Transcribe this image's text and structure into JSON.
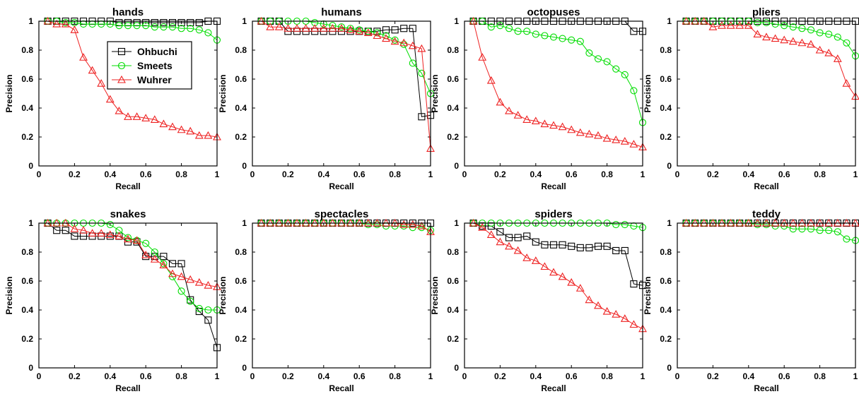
{
  "chart_data": [
    {
      "type": "line",
      "title": "hands",
      "xlabel": "Recall",
      "ylabel": "Precision",
      "xlim": [
        0,
        1
      ],
      "ylim": [
        0,
        1
      ],
      "xticks": [
        "0",
        "0.2",
        "0.4",
        "0.6",
        "0.8",
        "1"
      ],
      "yticks": [
        "0",
        "0.2",
        "0.4",
        "0.6",
        "0.8",
        "1"
      ],
      "legend_shown": true,
      "x": [
        0.05,
        0.1,
        0.15,
        0.2,
        0.25,
        0.3,
        0.35,
        0.4,
        0.45,
        0.5,
        0.55,
        0.6,
        0.65,
        0.7,
        0.75,
        0.8,
        0.85,
        0.9,
        0.95,
        1.0
      ],
      "series": [
        {
          "name": "Ohbuchi",
          "values": [
            1,
            1,
            1,
            1,
            1,
            1,
            1,
            1,
            0.99,
            0.99,
            0.99,
            0.99,
            0.99,
            0.99,
            0.99,
            0.99,
            0.99,
            0.99,
            1,
            1
          ]
        },
        {
          "name": "Smeets",
          "values": [
            1,
            1,
            0.99,
            0.99,
            0.98,
            0.98,
            0.98,
            0.98,
            0.97,
            0.97,
            0.97,
            0.97,
            0.96,
            0.96,
            0.96,
            0.95,
            0.95,
            0.94,
            0.92,
            0.87
          ]
        },
        {
          "name": "Wuhrer",
          "values": [
            1,
            0.98,
            0.98,
            0.94,
            0.75,
            0.66,
            0.57,
            0.46,
            0.38,
            0.34,
            0.34,
            0.33,
            0.32,
            0.29,
            0.27,
            0.25,
            0.24,
            0.21,
            0.21,
            0.2
          ]
        }
      ]
    },
    {
      "type": "line",
      "title": "humans",
      "xlabel": "Recall",
      "ylabel": "Precision",
      "xlim": [
        0,
        1
      ],
      "ylim": [
        0,
        1
      ],
      "xticks": [
        "0",
        "0.2",
        "0.4",
        "0.6",
        "0.8",
        "1"
      ],
      "yticks": [
        "0",
        "0.2",
        "0.4",
        "0.6",
        "0.8",
        "1"
      ],
      "x": [
        0.05,
        0.1,
        0.15,
        0.2,
        0.25,
        0.3,
        0.35,
        0.4,
        0.45,
        0.5,
        0.55,
        0.6,
        0.65,
        0.7,
        0.75,
        0.8,
        0.85,
        0.9,
        0.95,
        1.0
      ],
      "series": [
        {
          "name": "Ohbuchi",
          "values": [
            1,
            1,
            1,
            0.93,
            0.93,
            0.93,
            0.93,
            0.93,
            0.93,
            0.93,
            0.93,
            0.93,
            0.93,
            0.93,
            0.94,
            0.94,
            0.95,
            0.95,
            0.34,
            0.35
          ]
        },
        {
          "name": "Smeets",
          "values": [
            1,
            1,
            1,
            1,
            1,
            1,
            0.99,
            0.98,
            0.97,
            0.96,
            0.95,
            0.94,
            0.93,
            0.92,
            0.9,
            0.87,
            0.84,
            0.71,
            0.64,
            0.5
          ]
        },
        {
          "name": "Wuhrer",
          "values": [
            1,
            0.96,
            0.96,
            0.95,
            0.95,
            0.95,
            0.95,
            0.95,
            0.95,
            0.95,
            0.94,
            0.93,
            0.92,
            0.9,
            0.88,
            0.86,
            0.85,
            0.83,
            0.81,
            0.12
          ]
        }
      ]
    },
    {
      "type": "line",
      "title": "octopuses",
      "xlabel": "Recall",
      "ylabel": "Precision",
      "xlim": [
        0,
        1
      ],
      "ylim": [
        0,
        1
      ],
      "xticks": [
        "0",
        "0.2",
        "0.4",
        "0.6",
        "0.8",
        "1"
      ],
      "yticks": [
        "0",
        "0.2",
        "0.4",
        "0.6",
        "0.8",
        "1"
      ],
      "x": [
        0.05,
        0.1,
        0.15,
        0.2,
        0.25,
        0.3,
        0.35,
        0.4,
        0.45,
        0.5,
        0.55,
        0.6,
        0.65,
        0.7,
        0.75,
        0.8,
        0.85,
        0.9,
        0.95,
        1.0
      ],
      "series": [
        {
          "name": "Ohbuchi",
          "values": [
            1,
            1,
            1,
            1,
            1,
            1,
            1,
            1,
            1,
            1,
            1,
            1,
            1,
            1,
            1,
            1,
            1,
            1,
            0.93,
            0.93
          ]
        },
        {
          "name": "Smeets",
          "values": [
            1,
            1,
            0.96,
            0.97,
            0.95,
            0.93,
            0.93,
            0.91,
            0.9,
            0.89,
            0.88,
            0.87,
            0.86,
            0.78,
            0.74,
            0.72,
            0.67,
            0.63,
            0.52,
            0.3
          ]
        },
        {
          "name": "Wuhrer",
          "values": [
            1,
            0.75,
            0.59,
            0.44,
            0.38,
            0.35,
            0.32,
            0.31,
            0.29,
            0.28,
            0.27,
            0.25,
            0.23,
            0.22,
            0.21,
            0.19,
            0.18,
            0.17,
            0.15,
            0.13
          ]
        }
      ]
    },
    {
      "type": "line",
      "title": "pliers",
      "xlabel": "Recall",
      "ylabel": "Precision",
      "xlim": [
        0,
        1
      ],
      "ylim": [
        0,
        1
      ],
      "xticks": [
        "0",
        "0.2",
        "0.4",
        "0.6",
        "0.8",
        "1"
      ],
      "yticks": [
        "0",
        "0.2",
        "0.4",
        "0.6",
        "0.8",
        "1"
      ],
      "x": [
        0.05,
        0.1,
        0.15,
        0.2,
        0.25,
        0.3,
        0.35,
        0.4,
        0.45,
        0.5,
        0.55,
        0.6,
        0.65,
        0.7,
        0.75,
        0.8,
        0.85,
        0.9,
        0.95,
        1.0
      ],
      "series": [
        {
          "name": "Ohbuchi",
          "values": [
            1,
            1,
            1,
            1,
            1,
            1,
            1,
            1,
            1,
            1,
            1,
            1,
            1,
            1,
            1,
            1,
            1,
            1,
            1,
            1
          ]
        },
        {
          "name": "Smeets",
          "values": [
            1,
            1,
            1,
            1,
            1,
            1,
            1,
            1,
            0.99,
            0.99,
            0.98,
            0.97,
            0.96,
            0.95,
            0.94,
            0.92,
            0.91,
            0.89,
            0.85,
            0.76
          ]
        },
        {
          "name": "Wuhrer",
          "values": [
            1,
            1,
            1,
            0.96,
            0.97,
            0.97,
            0.97,
            0.97,
            0.91,
            0.89,
            0.88,
            0.87,
            0.86,
            0.85,
            0.84,
            0.8,
            0.78,
            0.74,
            0.57,
            0.48
          ]
        }
      ]
    },
    {
      "type": "line",
      "title": "snakes",
      "xlabel": "Recall",
      "ylabel": "Precision",
      "xlim": [
        0,
        1
      ],
      "ylim": [
        0,
        1
      ],
      "xticks": [
        "0",
        "0.2",
        "0.4",
        "0.6",
        "0.8",
        "1"
      ],
      "yticks": [
        "0",
        "0.2",
        "0.4",
        "0.6",
        "0.8",
        "1"
      ],
      "x": [
        0.05,
        0.1,
        0.15,
        0.2,
        0.25,
        0.3,
        0.35,
        0.4,
        0.45,
        0.5,
        0.55,
        0.6,
        0.65,
        0.7,
        0.75,
        0.8,
        0.85,
        0.9,
        0.95,
        1.0
      ],
      "series": [
        {
          "name": "Ohbuchi",
          "values": [
            1,
            0.95,
            0.95,
            0.91,
            0.91,
            0.91,
            0.91,
            0.91,
            0.91,
            0.87,
            0.87,
            0.77,
            0.77,
            0.77,
            0.72,
            0.72,
            0.47,
            0.39,
            0.33,
            0.14
          ]
        },
        {
          "name": "Smeets",
          "values": [
            1,
            1,
            1,
            1,
            1,
            1,
            1,
            0.99,
            0.95,
            0.9,
            0.88,
            0.86,
            0.8,
            0.72,
            0.63,
            0.53,
            0.46,
            0.41,
            0.4,
            0.4
          ]
        },
        {
          "name": "Wuhrer",
          "values": [
            1,
            1,
            1,
            0.96,
            0.95,
            0.93,
            0.93,
            0.92,
            0.91,
            0.89,
            0.88,
            0.78,
            0.75,
            0.71,
            0.65,
            0.63,
            0.61,
            0.59,
            0.57,
            0.56
          ]
        }
      ]
    },
    {
      "type": "line",
      "title": "spectacles",
      "xlabel": "Recall",
      "ylabel": "Precision",
      "xlim": [
        0,
        1
      ],
      "ylim": [
        0,
        1
      ],
      "xticks": [
        "0",
        "0.2",
        "0.4",
        "0.6",
        "0.8",
        "1"
      ],
      "yticks": [
        "0",
        "0.2",
        "0.4",
        "0.6",
        "0.8",
        "1"
      ],
      "x": [
        0.05,
        0.1,
        0.15,
        0.2,
        0.25,
        0.3,
        0.35,
        0.4,
        0.45,
        0.5,
        0.55,
        0.6,
        0.65,
        0.7,
        0.75,
        0.8,
        0.85,
        0.9,
        0.95,
        1.0
      ],
      "series": [
        {
          "name": "Ohbuchi",
          "values": [
            1,
            1,
            1,
            1,
            1,
            1,
            1,
            1,
            1,
            1,
            1,
            1,
            1,
            1,
            1,
            1,
            1,
            1,
            1,
            1
          ]
        },
        {
          "name": "Smeets",
          "values": [
            1,
            1,
            1,
            1,
            1,
            1,
            1,
            1,
            1,
            1,
            1,
            1,
            0.99,
            0.99,
            0.98,
            0.98,
            0.98,
            0.97,
            0.97,
            0.95
          ]
        },
        {
          "name": "Wuhrer",
          "values": [
            1,
            1,
            1,
            1,
            1,
            1,
            1,
            1,
            1,
            1,
            1,
            1,
            1,
            1,
            1,
            1,
            0.99,
            0.99,
            0.98,
            0.94
          ]
        }
      ]
    },
    {
      "type": "line",
      "title": "spiders",
      "xlabel": "Recall",
      "ylabel": "Precision",
      "xlim": [
        0,
        1
      ],
      "ylim": [
        0,
        1
      ],
      "xticks": [
        "0",
        "0.2",
        "0.4",
        "0.6",
        "0.8",
        "1"
      ],
      "yticks": [
        "0",
        "0.2",
        "0.4",
        "0.6",
        "0.8",
        "1"
      ],
      "x": [
        0.05,
        0.1,
        0.15,
        0.2,
        0.25,
        0.3,
        0.35,
        0.4,
        0.45,
        0.5,
        0.55,
        0.6,
        0.65,
        0.7,
        0.75,
        0.8,
        0.85,
        0.9,
        0.95,
        1.0
      ],
      "series": [
        {
          "name": "Ohbuchi",
          "values": [
            1,
            0.98,
            0.98,
            0.94,
            0.9,
            0.9,
            0.91,
            0.87,
            0.85,
            0.85,
            0.85,
            0.84,
            0.83,
            0.83,
            0.84,
            0.84,
            0.81,
            0.81,
            0.58,
            0.57
          ]
        },
        {
          "name": "Smeets",
          "values": [
            1,
            1,
            1,
            1,
            1,
            1,
            1,
            1,
            1,
            1,
            1,
            1,
            1,
            1,
            1,
            1,
            0.99,
            0.99,
            0.98,
            0.97
          ]
        },
        {
          "name": "Wuhrer",
          "values": [
            1,
            0.97,
            0.92,
            0.87,
            0.84,
            0.81,
            0.76,
            0.74,
            0.7,
            0.66,
            0.63,
            0.59,
            0.55,
            0.47,
            0.43,
            0.39,
            0.37,
            0.34,
            0.3,
            0.27
          ]
        }
      ]
    },
    {
      "type": "line",
      "title": "teddy",
      "xlabel": "Recall",
      "ylabel": "Precision",
      "xlim": [
        0,
        1
      ],
      "ylim": [
        0,
        1
      ],
      "xticks": [
        "0",
        "0.2",
        "0.4",
        "0.6",
        "0.8",
        "1"
      ],
      "yticks": [
        "0",
        "0.2",
        "0.4",
        "0.6",
        "0.8",
        "1"
      ],
      "x": [
        0.05,
        0.1,
        0.15,
        0.2,
        0.25,
        0.3,
        0.35,
        0.4,
        0.45,
        0.5,
        0.55,
        0.6,
        0.65,
        0.7,
        0.75,
        0.8,
        0.85,
        0.9,
        0.95,
        1.0
      ],
      "series": [
        {
          "name": "Ohbuchi",
          "values": [
            1,
            1,
            1,
            1,
            1,
            1,
            1,
            1,
            1,
            1,
            1,
            1,
            1,
            1,
            1,
            1,
            1,
            1,
            1,
            1
          ]
        },
        {
          "name": "Smeets",
          "values": [
            1,
            1,
            1,
            1,
            1,
            1,
            1,
            1,
            0.99,
            0.99,
            0.98,
            0.98,
            0.96,
            0.96,
            0.96,
            0.95,
            0.95,
            0.94,
            0.89,
            0.88
          ]
        },
        {
          "name": "Wuhrer",
          "values": [
            1,
            1,
            1,
            1,
            1,
            1,
            1,
            1,
            1,
            1,
            1,
            1,
            1,
            1,
            1,
            1,
            1,
            1,
            1,
            1
          ]
        }
      ]
    }
  ],
  "series_styles": [
    {
      "name": "Ohbuchi",
      "color": "#000000",
      "marker": "square"
    },
    {
      "name": "Smeets",
      "color": "#00dd00",
      "marker": "circle"
    },
    {
      "name": "Wuhrer",
      "color": "#ee2222",
      "marker": "triangle"
    }
  ]
}
